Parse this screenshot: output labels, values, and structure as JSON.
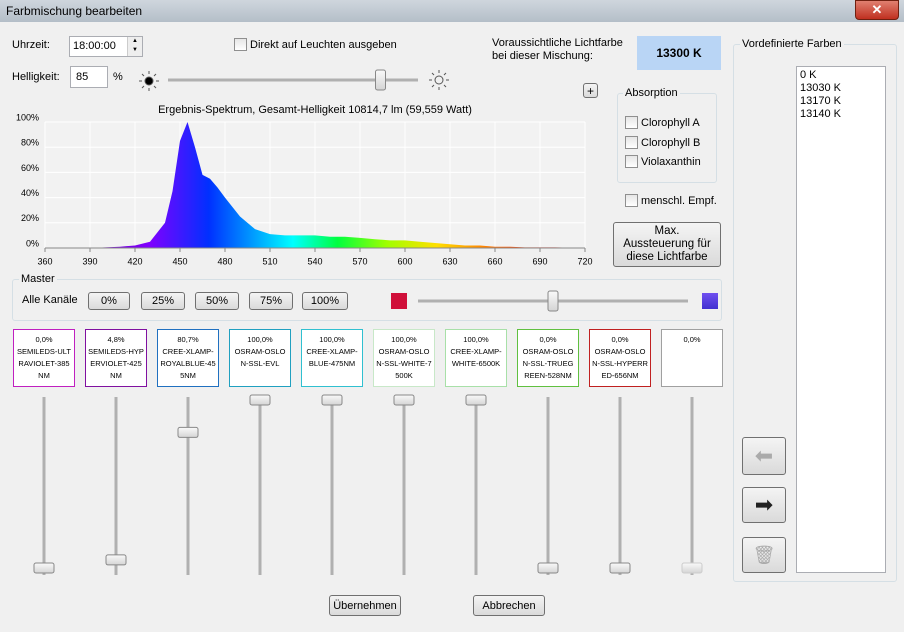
{
  "window": {
    "title": "Farbmischung bearbeiten"
  },
  "controls": {
    "time_label": "Uhrzeit:",
    "time": "18:00:00",
    "direct_output": "Direkt auf Leuchten ausgeben",
    "brightness_label": "Helligkeit:",
    "brightness": 85,
    "brightness_unit": "%",
    "expected_color_label": "Voraussichtliche Lichtfarbe bei dieser Mischung:",
    "expected_color": "13300 K",
    "plus": "+"
  },
  "absorption": {
    "title": "Absorption",
    "items": [
      "Clorophyll A",
      "Clorophyll B",
      "Violaxanthin"
    ]
  },
  "human": "menschl. Empf.",
  "max_button": "Max. Aussteuerung für diese Lichtfarbe",
  "chart_data": {
    "type": "area",
    "title": "Ergebnis-Spektrum, Gesamt-Helligkeit 10814,7 lm (59,559 Watt)",
    "x": [
      390,
      400,
      410,
      420,
      430,
      440,
      445,
      450,
      455,
      460,
      465,
      470,
      475,
      480,
      490,
      500,
      510,
      520,
      530,
      540,
      550,
      560,
      570,
      580,
      590,
      600,
      610,
      620,
      630,
      640,
      650,
      660,
      670,
      680,
      690,
      700,
      710,
      720
    ],
    "values": [
      0,
      0.5,
      1,
      2,
      5,
      20,
      45,
      85,
      100,
      80,
      58,
      55,
      48,
      40,
      25,
      15,
      11,
      10,
      10,
      10,
      9,
      9,
      8,
      7,
      6,
      6,
      5,
      4,
      3,
      2,
      2,
      1,
      1,
      0.5,
      0.5,
      0.5,
      0.3,
      0
    ],
    "xlim": [
      360,
      720
    ],
    "xticks": [
      360,
      390,
      420,
      450,
      480,
      510,
      540,
      570,
      600,
      630,
      660,
      690,
      720
    ],
    "ylim": [
      0,
      100
    ],
    "yticks": [
      {
        "value": 0,
        "label": "0%"
      },
      {
        "value": 20,
        "label": "20%"
      },
      {
        "value": 40,
        "label": "40%"
      },
      {
        "value": 60,
        "label": "60%"
      },
      {
        "value": 80,
        "label": "80%"
      },
      {
        "value": 100,
        "label": "100%"
      }
    ],
    "grid": true
  },
  "master": {
    "title": "Master",
    "label": "Alle Kanäle",
    "buttons": [
      "0%",
      "25%",
      "50%",
      "75%",
      "100%"
    ]
  },
  "channels": {
    "names": [
      "SEMILEDS-ULTRAVIOLET-385NM",
      "SEMILEDS-HYPERVIOLET-425NM",
      "CREE-XLAMP-ROYALBLUE-455NM",
      "OSRAM-OSLON-SSL-EVL",
      "CREE-XLAMP-BLUE-475NM",
      "OSRAM-OSLON-SSL-WHITE-7500K",
      "CREE-XLAMP-WHITE-6500K",
      "OSRAM-OSLON-SSL-TRUEGREEN-528NM",
      "OSRAM-OSLON-SSL-HYPERRED-656NM",
      null
    ],
    "values": [
      0,
      4.8,
      80.7,
      100,
      100,
      100,
      100,
      0,
      0,
      0
    ],
    "value_labels": [
      "0,0%",
      "4,8%",
      "80,7%",
      "100,0%",
      "100,0%",
      "100,0%",
      "100,0%",
      "0,0%",
      "0,0%",
      "0,0%"
    ],
    "colors": [
      "#c020c0",
      "#8010a0",
      "#2070c0",
      "#20a0c0",
      "#30c0d0",
      "#c8e8c8",
      "#a8e0a8",
      "#60c040",
      "#c02020",
      "#a0a0a0"
    ]
  },
  "presets": {
    "title": "Vordefinierte Farben",
    "items": [
      "0 K",
      "13030 K",
      "13170 K",
      "13140 K"
    ]
  },
  "buttons": {
    "ok": "Übernehmen",
    "cancel": "Abbrechen"
  }
}
